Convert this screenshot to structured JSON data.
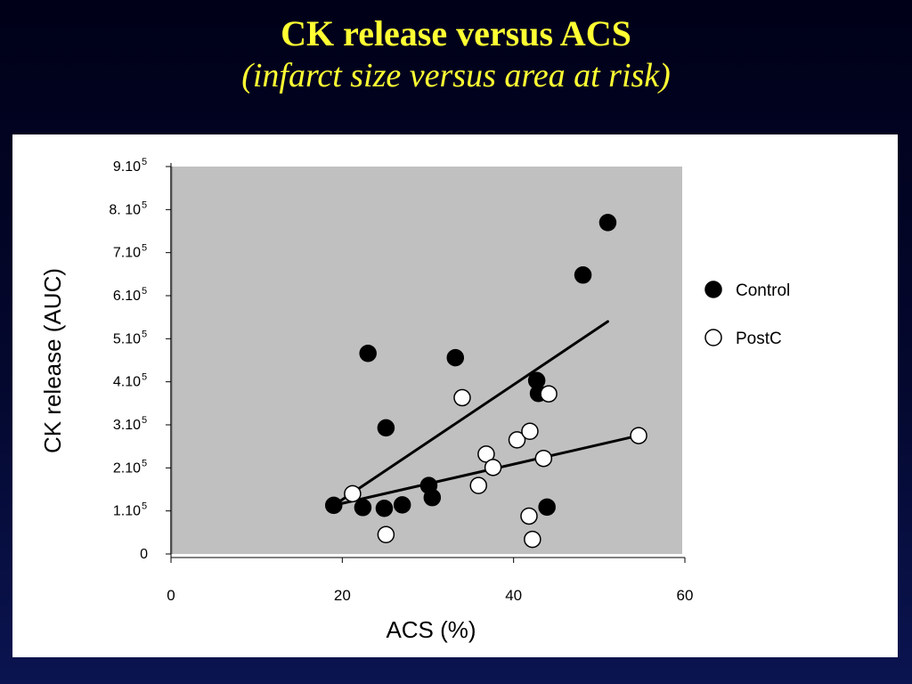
{
  "title": {
    "line1": "CK release versus ACS",
    "line2": "(infarct size versus area at risk)"
  },
  "colors": {
    "title": "#ffff33",
    "plot_area": "#c0c0c0",
    "control": "#000000",
    "postc": "#ffffff"
  },
  "chart_data": {
    "type": "scatter",
    "xlabel": "ACS (%)",
    "ylabel": "CK release (AUC)",
    "xlim": [
      0,
      60
    ],
    "ylim": [
      0,
      900000
    ],
    "x_ticks": [
      {
        "value": 0,
        "label": "0"
      },
      {
        "value": 20,
        "label": "20"
      },
      {
        "value": 40,
        "label": "40"
      },
      {
        "value": 60,
        "label": "60"
      }
    ],
    "y_ticks": [
      {
        "value": 0,
        "base": "0",
        "exp": ""
      },
      {
        "value": 100000,
        "base": "1.10",
        "exp": "5"
      },
      {
        "value": 200000,
        "base": "2.10",
        "exp": "5"
      },
      {
        "value": 300000,
        "base": "3.10",
        "exp": "5"
      },
      {
        "value": 400000,
        "base": "4.10",
        "exp": "5"
      },
      {
        "value": 500000,
        "base": "5.10",
        "exp": "5"
      },
      {
        "value": 600000,
        "base": "6.10",
        "exp": "5"
      },
      {
        "value": 700000,
        "base": "7.10",
        "exp": "5"
      },
      {
        "value": 800000,
        "base": "8. 10",
        "exp": "5"
      },
      {
        "value": 900000,
        "base": "9.10",
        "exp": "5"
      }
    ],
    "grid": false,
    "legend_position": "right",
    "series": [
      {
        "name": "Control",
        "marker": "filled",
        "points": [
          [
            19.0,
            113000
          ],
          [
            22.4,
            108000
          ],
          [
            23.0,
            466000
          ],
          [
            24.9,
            106000
          ],
          [
            25.1,
            293000
          ],
          [
            27.0,
            114000
          ],
          [
            30.1,
            159000
          ],
          [
            30.5,
            131000
          ],
          [
            33.2,
            456000
          ],
          [
            42.7,
            403000
          ],
          [
            42.9,
            373000
          ],
          [
            43.9,
            109000
          ],
          [
            48.1,
            648000
          ],
          [
            51.0,
            770000
          ]
        ],
        "trendline": [
          [
            19.0,
            113000
          ],
          [
            51.0,
            540000
          ]
        ]
      },
      {
        "name": "PostC",
        "marker": "open",
        "points": [
          [
            21.2,
            140000
          ],
          [
            25.1,
            45000
          ],
          [
            34.0,
            363000
          ],
          [
            35.9,
            159000
          ],
          [
            36.8,
            232000
          ],
          [
            37.6,
            201000
          ],
          [
            40.4,
            265000
          ],
          [
            41.8,
            88000
          ],
          [
            41.9,
            285000
          ],
          [
            42.2,
            34000
          ],
          [
            43.5,
            222000
          ],
          [
            44.1,
            372000
          ],
          [
            54.6,
            275000
          ]
        ],
        "trendline": [
          [
            19.0,
            113000
          ],
          [
            54.6,
            275000
          ]
        ]
      }
    ]
  }
}
